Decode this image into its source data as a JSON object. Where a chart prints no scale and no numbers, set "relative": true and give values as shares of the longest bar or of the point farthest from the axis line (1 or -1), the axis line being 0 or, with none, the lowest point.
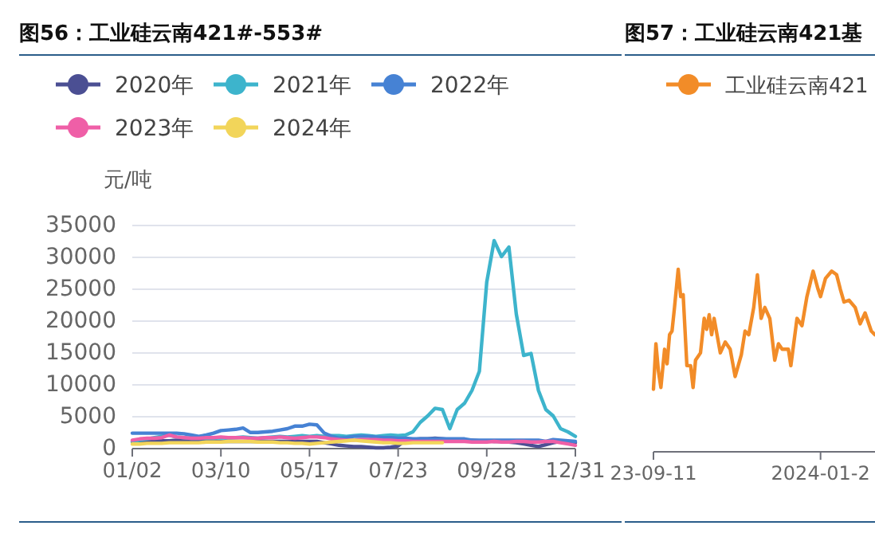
{
  "chart_data": [
    {
      "type": "line",
      "title": "图56：工业硅云南421#-553#",
      "ylabel": "元/吨",
      "legend": "top",
      "grid": "y",
      "categories": [
        "01/02",
        null,
        null,
        null,
        null,
        null,
        null,
        null,
        null,
        null,
        null,
        null,
        "03/10",
        null,
        null,
        null,
        null,
        null,
        null,
        null,
        null,
        null,
        null,
        null,
        "05/17",
        null,
        null,
        null,
        null,
        null,
        null,
        null,
        null,
        null,
        null,
        null,
        "07/23",
        null,
        null,
        null,
        null,
        null,
        null,
        null,
        null,
        null,
        null,
        null,
        "09/28",
        null,
        null,
        null,
        null,
        null,
        null,
        null,
        null,
        null,
        null,
        null,
        "12/31"
      ],
      "ylim": [
        0,
        35000
      ],
      "yticks": [
        0,
        5000,
        10000,
        15000,
        20000,
        25000,
        30000,
        35000
      ],
      "series": [
        {
          "name": "2020年",
          "color": "#4b4f93",
          "values": [
            900,
            900,
            1000,
            1100,
            1100,
            1100,
            1200,
            1200,
            1100,
            1100,
            1000,
            1000,
            1000,
            1000,
            1000,
            1000,
            1000,
            1000,
            1000,
            1000,
            1000,
            1000,
            1000,
            1000,
            1000,
            1000,
            800,
            600,
            400,
            300,
            200,
            200,
            100,
            0,
            0,
            100,
            300,
            1200,
            1300,
            1400,
            1400,
            1500,
            1400,
            1300,
            1300,
            1200,
            1200,
            1100,
            1100,
            1000,
            1000,
            900,
            800,
            600,
            400,
            200,
            500,
            800,
            1000,
            900,
            800
          ]
        },
        {
          "name": "2021年",
          "color": "#3db4cc",
          "values": [
            1000,
            1200,
            1400,
            1600,
            1800,
            2000,
            1700,
            1600,
            1500,
            1500,
            1500,
            1500,
            1600,
            1500,
            1600,
            1700,
            1600,
            1500,
            1600,
            1700,
            1800,
            1700,
            1800,
            1900,
            1800,
            1900,
            1800,
            1900,
            1900,
            1800,
            1900,
            2000,
            1900,
            1800,
            1900,
            2000,
            1900,
            2000,
            2500,
            4000,
            5000,
            6200,
            6000,
            3000,
            6000,
            7000,
            9000,
            12000,
            26000,
            32500,
            30000,
            31500,
            21000,
            14500,
            14800,
            9000,
            6000,
            5000,
            3000,
            2500,
            1800
          ]
        },
        {
          "name": "2022年",
          "color": "#4682d4",
          "values": [
            2300,
            2300,
            2300,
            2300,
            2300,
            2300,
            2300,
            2200,
            2000,
            1800,
            2000,
            2300,
            2700,
            2800,
            2900,
            3100,
            2400,
            2400,
            2500,
            2600,
            2800,
            3000,
            3400,
            3400,
            3700,
            3600,
            2300,
            1800,
            1500,
            1600,
            1800,
            1800,
            1800,
            1700,
            1600,
            1600,
            1500,
            1500,
            1400,
            1400,
            1400,
            1400,
            1400,
            1400,
            1400,
            1400,
            1200,
            1200,
            1200,
            1200,
            1200,
            1200,
            1200,
            1200,
            1200,
            1200,
            1000,
            1300,
            1200,
            1100,
            1000
          ]
        },
        {
          "name": "2023年",
          "color": "#ef5fa7",
          "values": [
            1200,
            1400,
            1500,
            1500,
            1600,
            2000,
            1700,
            1600,
            1500,
            1500,
            1600,
            1600,
            1700,
            1600,
            1600,
            1600,
            1500,
            1500,
            1600,
            1600,
            1700,
            1600,
            1500,
            1600,
            1700,
            1700,
            1600,
            1400,
            1300,
            1200,
            1200,
            1300,
            1300,
            1300,
            1200,
            1200,
            1100,
            1100,
            1000,
            1000,
            1000,
            1000,
            1000,
            1000,
            1000,
            1000,
            900,
            900,
            900,
            1000,
            900,
            900,
            1000,
            1000,
            900,
            900,
            1000,
            1000,
            800,
            600,
            400
          ]
        },
        {
          "name": "2024年",
          "color": "#f2d55a",
          "values": [
            600,
            600,
            700,
            700,
            700,
            800,
            800,
            800,
            800,
            800,
            900,
            900,
            900,
            1000,
            1000,
            1000,
            1000,
            900,
            900,
            900,
            800,
            800,
            700,
            700,
            600,
            700,
            800,
            900,
            1000,
            1100,
            1200,
            1100,
            1000,
            900,
            800,
            800,
            700,
            700,
            800,
            800,
            800,
            800,
            800,
            null,
            null,
            null,
            null,
            null,
            null,
            null,
            null,
            null,
            null,
            null,
            null,
            null,
            null,
            null,
            null,
            null,
            null
          ]
        }
      ]
    },
    {
      "type": "line",
      "title": "图57：工业硅云南421基",
      "legend": "top",
      "relative": true,
      "xlim": [
        "2023-09-11",
        "2024-03-08"
      ],
      "xticks": [
        {
          "value": "2023-09-11",
          "label": "23-09-11"
        },
        {
          "value": "2024-01-24",
          "label": "2024-01-2"
        }
      ],
      "series": [
        {
          "name": "工业硅云南421",
          "color": "#f28c28",
          "x": [
            "2023-09-11",
            "2023-09-13",
            "2023-09-15",
            "2023-09-17",
            "2023-09-20",
            "2023-09-22",
            "2023-09-24",
            "2023-09-26",
            "2023-09-28",
            "2023-10-01",
            "2023-10-03",
            "2023-10-05",
            "2023-10-08",
            "2023-10-11",
            "2023-10-13",
            "2023-10-15",
            "2023-10-19",
            "2023-10-22",
            "2023-10-24",
            "2023-10-26",
            "2023-10-28",
            "2023-10-30",
            "2023-11-04",
            "2023-11-08",
            "2023-11-12",
            "2023-11-16",
            "2023-11-21",
            "2023-11-24",
            "2023-11-27",
            "2023-12-01",
            "2023-12-04",
            "2023-12-07",
            "2023-12-10",
            "2023-12-14",
            "2023-12-18",
            "2023-12-21",
            "2023-12-24",
            "2023-12-29",
            "2023-12-31",
            "2024-01-05",
            "2024-01-09",
            "2024-01-13",
            "2024-01-18",
            "2024-01-22",
            "2024-01-24",
            "2024-01-28",
            "2024-02-02",
            "2024-02-06",
            "2024-02-09",
            "2024-02-12",
            "2024-02-16",
            "2024-02-21",
            "2024-02-25",
            "2024-02-29",
            "2024-03-05",
            "2024-03-08"
          ],
          "values": [
            0.34,
            0.59,
            0.44,
            0.35,
            0.56,
            0.48,
            0.64,
            0.66,
            0.79,
            1,
            0.85,
            0.86,
            0.47,
            0.47,
            0.35,
            0.5,
            0.54,
            0.73,
            0.67,
            0.75,
            0.64,
            0.73,
            0.54,
            0.6,
            0.56,
            0.41,
            0.53,
            0.66,
            0.64,
            0.79,
            0.97,
            0.73,
            0.79,
            0.73,
            0.5,
            0.59,
            0.56,
            0.56,
            0.47,
            0.73,
            0.69,
            0.85,
            0.99,
            0.89,
            0.85,
            0.95,
            0.99,
            0.97,
            0.89,
            0.82,
            0.83,
            0.79,
            0.7,
            0.76,
            0.66,
            0.64
          ]
        }
      ]
    }
  ]
}
